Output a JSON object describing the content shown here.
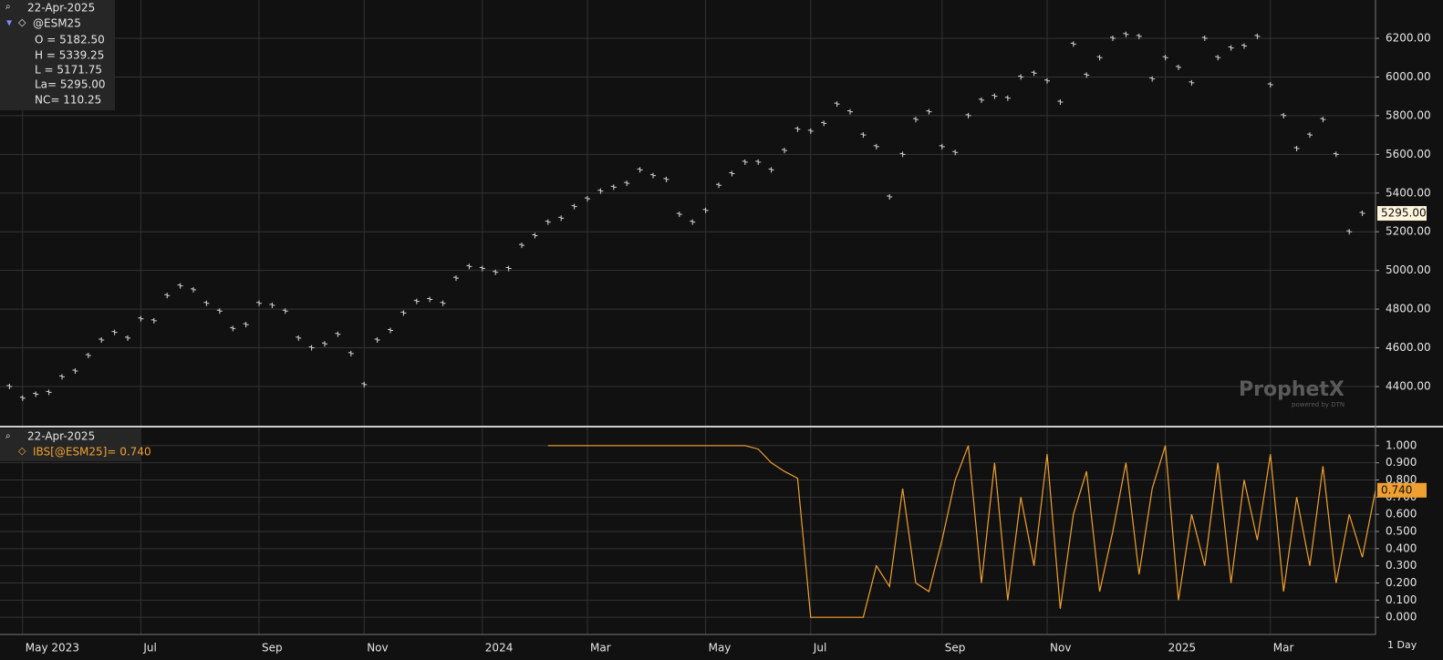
{
  "info": {
    "date": "22-Apr-2025",
    "symbol": "@ESM25",
    "lines": [
      "O = 5182.50",
      "H = 5339.25",
      "L = 5171.75",
      "La= 5295.00",
      "NC= 110.25"
    ]
  },
  "ibs_info": {
    "date": "22-Apr-2025"
  },
  "ui": {
    "watermark": "ProphetX",
    "watermark_sub": "powered by DTN",
    "interval": "1 Day"
  },
  "chart_data": [
    {
      "type": "bar-ticks",
      "categories": [
        null,
        null,
        "May 2023",
        null,
        null,
        null,
        null,
        null,
        null,
        null,
        null,
        "Jul",
        null,
        null,
        null,
        null,
        null,
        null,
        null,
        null,
        "Sep",
        null,
        null,
        null,
        null,
        null,
        null,
        null,
        "Nov",
        null,
        null,
        null,
        null,
        null,
        null,
        null,
        null,
        "2024",
        null,
        null,
        null,
        null,
        null,
        null,
        null,
        "Mar",
        null,
        null,
        null,
        null,
        null,
        null,
        null,
        null,
        "May",
        null,
        null,
        null,
        null,
        null,
        null,
        null,
        "Jul",
        null,
        null,
        null,
        null,
        null,
        null,
        null,
        null,
        null,
        "Sep",
        null,
        null,
        null,
        null,
        null,
        null,
        null,
        "Nov",
        null,
        null,
        null,
        null,
        null,
        null,
        null,
        null,
        "2025",
        null,
        null,
        null,
        null,
        null,
        null,
        null,
        "Mar",
        null,
        null,
        null,
        null,
        null,
        null,
        null
      ],
      "series": [
        {
          "name": "@ESM25",
          "color": "#d8d8d8",
          "values": [
            4420,
            4400,
            4340,
            4360,
            4370,
            4450,
            4480,
            4560,
            4640,
            4680,
            4650,
            4750,
            4740,
            4870,
            4920,
            4900,
            4830,
            4790,
            4700,
            4720,
            4830,
            4820,
            4790,
            4650,
            4600,
            4620,
            4670,
            4570,
            4410,
            4640,
            4690,
            4780,
            4840,
            4850,
            4830,
            4960,
            5020,
            5010,
            4990,
            5010,
            5130,
            5180,
            5250,
            5270,
            5330,
            5370,
            5410,
            5430,
            5450,
            5520,
            5490,
            5470,
            5290,
            5250,
            5310,
            5440,
            5500,
            5560,
            5560,
            5520,
            5620,
            5730,
            5720,
            5760,
            5860,
            5820,
            5700,
            5640,
            5380,
            5600,
            5780,
            5820,
            5640,
            5610,
            5800,
            5880,
            5900,
            5890,
            6000,
            6020,
            5980,
            5870,
            6170,
            6010,
            6100,
            6200,
            6220,
            6210,
            5990,
            6100,
            6050,
            5970,
            6200,
            6100,
            6150,
            6160,
            6210,
            5960,
            5800,
            5630,
            5700,
            5780,
            5600,
            5200,
            5295
          ],
          "value_labels": [
            null,
            null,
            null,
            null,
            null,
            null,
            null,
            null,
            null,
            null,
            null,
            null,
            null,
            null,
            null,
            null,
            null,
            null,
            null,
            null,
            null,
            null,
            null,
            null,
            null,
            null,
            null,
            null,
            null,
            null,
            null,
            null,
            null,
            null,
            null,
            null,
            null,
            null,
            null,
            null,
            null,
            null,
            null,
            null,
            null,
            null,
            null,
            null,
            null,
            null,
            null,
            null,
            null,
            null,
            null,
            null,
            null,
            null,
            null,
            null,
            null,
            null,
            null,
            null,
            null,
            null,
            null,
            null,
            null,
            null,
            null,
            null,
            null,
            null,
            null,
            null,
            null,
            null,
            null,
            null,
            null,
            null,
            null,
            null,
            null,
            null,
            null,
            null,
            null,
            null,
            null,
            null,
            null,
            null,
            null,
            null,
            null,
            null,
            null,
            null,
            null,
            null,
            null,
            null,
            "5295.00"
          ]
        }
      ],
      "ylim": [
        4202,
        6398
      ],
      "yticks": [
        {
          "value": 4400,
          "label": "4400.00"
        },
        {
          "value": 4600,
          "label": "4600.00"
        },
        {
          "value": 4800,
          "label": "4800.00"
        },
        {
          "value": 5000,
          "label": "5000.00"
        },
        {
          "value": 5200,
          "label": "5200.00"
        },
        {
          "value": 5400,
          "label": "5400.00"
        },
        {
          "value": 5600,
          "label": "5600.00"
        },
        {
          "value": 5800,
          "label": "5800.00"
        },
        {
          "value": 6000,
          "label": "6000.00"
        },
        {
          "value": 6200,
          "label": "6200.00"
        }
      ],
      "grid": true
    },
    {
      "type": "line",
      "series": [
        {
          "name": "IBS[@ESM25]= 0.740",
          "color": "#f0a030",
          "values": [
            null,
            null,
            null,
            null,
            null,
            null,
            null,
            null,
            null,
            null,
            null,
            null,
            null,
            null,
            null,
            null,
            null,
            null,
            null,
            null,
            null,
            null,
            null,
            null,
            null,
            null,
            null,
            null,
            null,
            null,
            null,
            null,
            null,
            null,
            null,
            null,
            null,
            null,
            null,
            null,
            null,
            null,
            1,
            1,
            1,
            1,
            1,
            1,
            1,
            1,
            1,
            1,
            1,
            1,
            1,
            1,
            1,
            1,
            0.98,
            0.9,
            0.85,
            0.81,
            0,
            0,
            0,
            0,
            0,
            0.3,
            0.18,
            0.75,
            0.2,
            0.15,
            0.45,
            0.8,
            1,
            0.2,
            0.9,
            0.1,
            0.7,
            0.3,
            0.95,
            0.05,
            0.6,
            0.85,
            0.15,
            0.5,
            0.9,
            0.25,
            0.75,
            1,
            0.1,
            0.6,
            0.3,
            0.9,
            0.2,
            0.8,
            0.45,
            0.95,
            0.15,
            0.7,
            0.3,
            0.88,
            0.2,
            0.6,
            0.35,
            0.74
          ],
          "value_labels": [
            null,
            null,
            null,
            null,
            null,
            null,
            null,
            null,
            null,
            null,
            null,
            null,
            null,
            null,
            null,
            null,
            null,
            null,
            null,
            null,
            null,
            null,
            null,
            null,
            null,
            null,
            null,
            null,
            null,
            null,
            null,
            null,
            null,
            null,
            null,
            null,
            null,
            null,
            null,
            null,
            null,
            null,
            null,
            null,
            null,
            null,
            null,
            null,
            null,
            null,
            null,
            null,
            null,
            null,
            null,
            null,
            null,
            null,
            null,
            null,
            null,
            null,
            null,
            null,
            null,
            null,
            null,
            null,
            null,
            null,
            null,
            null,
            null,
            null,
            null,
            null,
            null,
            null,
            null,
            null,
            null,
            null,
            null,
            null,
            null,
            null,
            null,
            null,
            null,
            null,
            null,
            null,
            null,
            null,
            null,
            null,
            null,
            null,
            null,
            null,
            null,
            null,
            null,
            null,
            null,
            "0.740"
          ]
        }
      ],
      "ylim": [
        -0.1,
        1.1
      ],
      "yticks": [
        {
          "value": 0,
          "label": "0.000"
        },
        {
          "value": 0.1,
          "label": "0.100"
        },
        {
          "value": 0.2,
          "label": "0.200"
        },
        {
          "value": 0.3,
          "label": "0.300"
        },
        {
          "value": 0.4,
          "label": "0.400"
        },
        {
          "value": 0.5,
          "label": "0.500"
        },
        {
          "value": 0.6,
          "label": "0.600"
        },
        {
          "value": 0.7,
          "label": "0.700"
        },
        {
          "value": 0.8,
          "label": "0.800"
        },
        {
          "value": 0.9,
          "label": "0.900"
        },
        {
          "value": 1,
          "label": "1.000"
        }
      ],
      "grid": true
    }
  ]
}
